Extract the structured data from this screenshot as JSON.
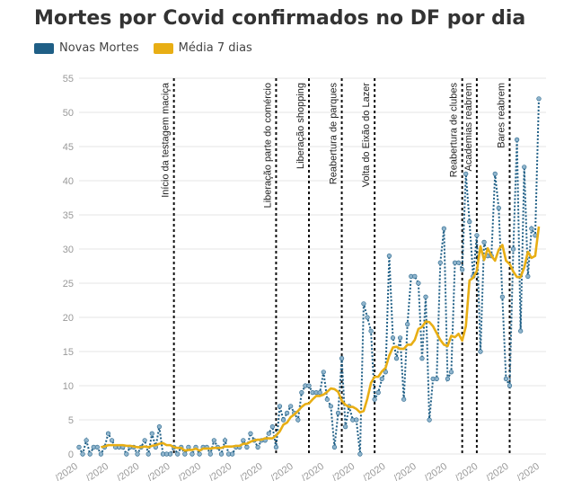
{
  "title": "Mortes por Covid confirmados no DF por dia",
  "colors": {
    "deaths": "#1f5f86",
    "avg": "#e8ae14",
    "grid": "#e6e6e6",
    "annotation": "#111111"
  },
  "chart_data": {
    "type": "line",
    "ylim": [
      0,
      55
    ],
    "yticks": [
      "0",
      "5",
      "10",
      "15",
      "20",
      "25",
      "30",
      "35",
      "40",
      "45",
      "50",
      "55"
    ],
    "xticks": [
      "/2020",
      "/2020",
      "/2020",
      "/2020",
      "/2020",
      "/2020",
      "/2020",
      "/2020",
      "/2020",
      "/2020",
      "/2020",
      "/2020",
      "/2020",
      "/2020",
      "/2020",
      "/2020"
    ],
    "series": [
      {
        "name": "Novas Mortes",
        "values": [
          1,
          0,
          2,
          0,
          1,
          1,
          0,
          1,
          3,
          2,
          1,
          1,
          1,
          0,
          1,
          1,
          0,
          1,
          2,
          0,
          3,
          1,
          4,
          0,
          0,
          0,
          1,
          0,
          1,
          0,
          1,
          0,
          1,
          0,
          1,
          1,
          0,
          2,
          1,
          0,
          2,
          0,
          0,
          1,
          1,
          2,
          1,
          3,
          2,
          1,
          2,
          2,
          3,
          4,
          1,
          7,
          5,
          6,
          7,
          6,
          5,
          9,
          10,
          10,
          9,
          9,
          9,
          12,
          8,
          7,
          1,
          6,
          14,
          4,
          7,
          5,
          5,
          0,
          22,
          20,
          18,
          8,
          9,
          11,
          12,
          29,
          17,
          14,
          17,
          8,
          19,
          26,
          26,
          25,
          14,
          23,
          5,
          11,
          11,
          28,
          33,
          11,
          12,
          28,
          28,
          27,
          41,
          34,
          26,
          32,
          15,
          31,
          29,
          29,
          41,
          36,
          23,
          11,
          10,
          30,
          46,
          18,
          42,
          26,
          33,
          32,
          52
        ]
      },
      {
        "name": "Média 7 dias",
        "values": [
          null,
          null,
          null,
          null,
          null,
          null,
          1,
          1.1,
          1.3,
          1.3,
          1.3,
          1.3,
          1.3,
          1.2,
          1.2,
          1.1,
          1,
          1,
          1.1,
          1,
          1.2,
          1.3,
          1.5,
          1.6,
          1.3,
          1.3,
          1,
          0.9,
          0.9,
          0.5,
          0.6,
          0.6,
          0.8,
          0.5,
          0.8,
          0.8,
          0.8,
          0.9,
          0.9,
          0.9,
          1.1,
          1.1,
          1.1,
          1.2,
          1.2,
          1.5,
          1.5,
          1.8,
          2,
          2.1,
          2.1,
          2.3,
          2.3,
          2.3,
          2.7,
          3.3,
          4.3,
          4.6,
          5.4,
          5.8,
          6.3,
          6.9,
          7.3,
          7.4,
          8,
          8.5,
          8.5,
          8.7,
          9.1,
          9.6,
          9.5,
          9.1,
          7.8,
          7.2,
          6.9,
          6.9,
          6.6,
          6.1,
          6.3,
          8.1,
          10.4,
          11.3,
          11.3,
          12.1,
          12.6,
          14.4,
          15.6,
          15.7,
          15.4,
          15.4,
          16,
          16,
          16.7,
          18.3,
          18.6,
          19.4,
          19.3,
          18.7,
          17.7,
          16.7,
          16,
          15.8,
          17.3,
          17.1,
          17.6,
          16.6,
          18.7,
          25.4,
          25.8,
          26.8,
          30.4,
          28.4,
          30.1,
          29,
          28.3,
          29.9,
          30.6,
          28.3,
          27.8,
          26.7,
          25.9,
          25.9,
          27.3,
          29.6,
          28.7,
          29,
          33.3
        ]
      }
    ],
    "annotations": [
      {
        "index": 26,
        "label": "Início da testagem maciça"
      },
      {
        "index": 54,
        "label": "Liberação parte do comércio"
      },
      {
        "index": 63,
        "label": "Liberação shopping"
      },
      {
        "index": 72,
        "label": "Reabertura de parques"
      },
      {
        "index": 81,
        "label": "Volta do Eixão do Lazer"
      },
      {
        "index": 105,
        "label": "Reabertura de clubes"
      },
      {
        "index": 109,
        "label": "Academias reabrem"
      },
      {
        "index": 118,
        "label": "Bares reabrem"
      }
    ]
  }
}
